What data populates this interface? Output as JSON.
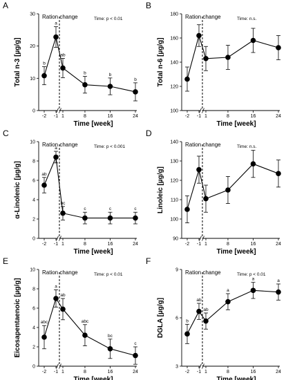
{
  "chart_data": [
    {
      "letter": "A",
      "type": "line",
      "ylabel": "Total n-3 [µg/g]",
      "xlabel": "Time [week]",
      "annotation": "Ration change",
      "ptext": "Time: p < 0.01",
      "ylim": [
        0,
        30
      ],
      "yticks": [
        0,
        10,
        20,
        30
      ],
      "x": [
        -2,
        -1,
        1,
        8,
        16,
        24
      ],
      "xticklabels": [
        "-2",
        "-1",
        "1",
        "8",
        "16",
        "24"
      ],
      "y": [
        10.8,
        22.8,
        13.2,
        8.0,
        7.5,
        5.8
      ],
      "err": [
        2.8,
        3.2,
        3.0,
        2.6,
        2.6,
        2.8
      ],
      "sig": [
        "b",
        "a",
        "ab",
        "b",
        "b",
        "b"
      ]
    },
    {
      "letter": "B",
      "type": "line",
      "ylabel": "Total n-6 [µg/g]",
      "xlabel": "Time [week]",
      "annotation": "Ration change",
      "ptext": "Time: n.s.",
      "ylim": [
        100,
        180
      ],
      "yticks": [
        100,
        120,
        140,
        160,
        180
      ],
      "x": [
        -2,
        -1,
        1,
        8,
        16,
        24
      ],
      "xticklabels": [
        "-2",
        "-1",
        "1",
        "8",
        "16",
        "24"
      ],
      "y": [
        126,
        162,
        143,
        144,
        158,
        152
      ],
      "err": [
        10,
        9,
        10,
        10,
        10,
        10
      ],
      "sig": [
        "",
        "",
        "",
        "",
        "",
        ""
      ]
    },
    {
      "letter": "C",
      "type": "line",
      "ylabel": "α-Linolenic [µg/g]",
      "xlabel": "Time [week]",
      "annotation": "Ration change",
      "ptext": "Time: p < 0.001",
      "ylim": [
        0,
        10
      ],
      "yticks": [
        0,
        2,
        4,
        6,
        8,
        10
      ],
      "x": [
        -2,
        -1,
        1,
        8,
        16,
        24
      ],
      "xticklabels": [
        "-2",
        "-1",
        "1",
        "8",
        "16",
        "24"
      ],
      "y": [
        5.5,
        8.4,
        2.6,
        2.1,
        2.1,
        2.1
      ],
      "err": [
        0.8,
        0.6,
        0.7,
        0.6,
        0.6,
        0.6
      ],
      "sig": [
        "ab",
        "a",
        "bc",
        "c",
        "c",
        "c"
      ]
    },
    {
      "letter": "D",
      "type": "line",
      "ylabel": "Linoleic [µg/g]",
      "xlabel": "Time [week]",
      "annotation": "Ration change",
      "ptext": "Time: n.s.",
      "ylim": [
        90,
        140
      ],
      "yticks": [
        90,
        100,
        110,
        120,
        130,
        140
      ],
      "x": [
        -2,
        -1,
        1,
        8,
        16,
        24
      ],
      "xticklabels": [
        "-2",
        "-1",
        "1",
        "8",
        "16",
        "24"
      ],
      "y": [
        105,
        125.5,
        110.5,
        115,
        128.5,
        123.5
      ],
      "err": [
        7,
        7,
        7,
        7,
        7,
        7
      ],
      "sig": [
        "",
        "",
        "",
        "",
        "",
        ""
      ]
    },
    {
      "letter": "E",
      "type": "line",
      "ylabel": "Eicosapentaenoic [µg/g]",
      "xlabel": "Time [week]",
      "annotation": "Ration change",
      "ptext": "Time: p < 0.01",
      "ylim": [
        0,
        10
      ],
      "yticks": [
        0,
        2,
        4,
        6,
        8,
        10
      ],
      "x": [
        -2,
        -1,
        1,
        8,
        16,
        24
      ],
      "xticklabels": [
        "-2",
        "-1",
        "1",
        "8",
        "16",
        "24"
      ],
      "y": [
        3.0,
        7.0,
        5.9,
        3.2,
        1.8,
        1.1
      ],
      "err": [
        1.2,
        0.9,
        1.1,
        1.1,
        1.0,
        0.9
      ],
      "sig": [
        "abc",
        "a",
        "ab",
        "abc",
        "bc",
        "c"
      ]
    },
    {
      "letter": "F",
      "type": "line",
      "ylabel": "DGLA [µg/g]",
      "xlabel": "Time [week]",
      "annotation": "Ration change",
      "ptext": "Time: p < 0.01",
      "ylim": [
        3,
        9
      ],
      "yticks": [
        3,
        6,
        9
      ],
      "x": [
        -2,
        -1,
        1,
        8,
        16,
        24
      ],
      "xticklabels": [
        "-2",
        "-1",
        "1",
        "8",
        "16",
        "24"
      ],
      "y": [
        5.0,
        6.4,
        5.8,
        7.0,
        7.7,
        7.6
      ],
      "err": [
        0.6,
        0.5,
        0.5,
        0.5,
        0.5,
        0.5
      ],
      "sig": [
        "b",
        "ab",
        "ab",
        "a",
        "a",
        "a"
      ]
    }
  ]
}
